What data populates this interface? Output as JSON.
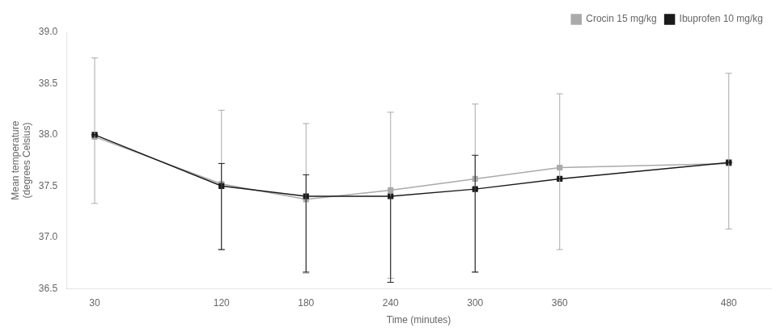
{
  "chart_data": {
    "type": "line",
    "xlabel": "Time (minutes)",
    "ylabel": "Mean temperature\n(degrees Celsius)",
    "x": [
      30,
      120,
      180,
      240,
      300,
      360,
      480
    ],
    "series": [
      {
        "name": "Crocin 15 mg/kg",
        "color": "#aaaaaa",
        "marker": "square",
        "line_style": "solid",
        "values": [
          37.98,
          37.52,
          37.37,
          37.46,
          37.57,
          37.68,
          37.72
        ],
        "error_upper": [
          0.77,
          0.72,
          0.74,
          0.76,
          0.73,
          0.72,
          0.88
        ],
        "error_lower": [
          0.65,
          0.64,
          0.72,
          0.86,
          0.91,
          0.8,
          0.64
        ]
      },
      {
        "name": "Ibuprofen 10 mg/kg",
        "color": "#1a1a1a",
        "marker": "square",
        "line_style": "solid",
        "values": [
          38.0,
          37.5,
          37.4,
          37.4,
          37.47,
          37.57,
          37.73
        ],
        "error_upper": [
          0.0,
          0.22,
          0.21,
          0.0,
          0.33,
          0.0,
          0.0
        ],
        "error_lower": [
          0.0,
          0.62,
          0.74,
          0.84,
          0.81,
          0.0,
          0.0
        ]
      }
    ],
    "xlim": [
      10,
      510
    ],
    "xticks": [
      30,
      120,
      180,
      240,
      300,
      360,
      480
    ],
    "ylim": [
      36.5,
      39.0
    ],
    "yticks": [
      36.5,
      {
        "value": 37.0,
        "label": "37.0"
      },
      37.5,
      {
        "value": 38.0,
        "label": "38.0"
      },
      38.5,
      {
        "value": 39.0,
        "label": "39.0"
      }
    ],
    "grid": false,
    "legend": "upper right"
  }
}
